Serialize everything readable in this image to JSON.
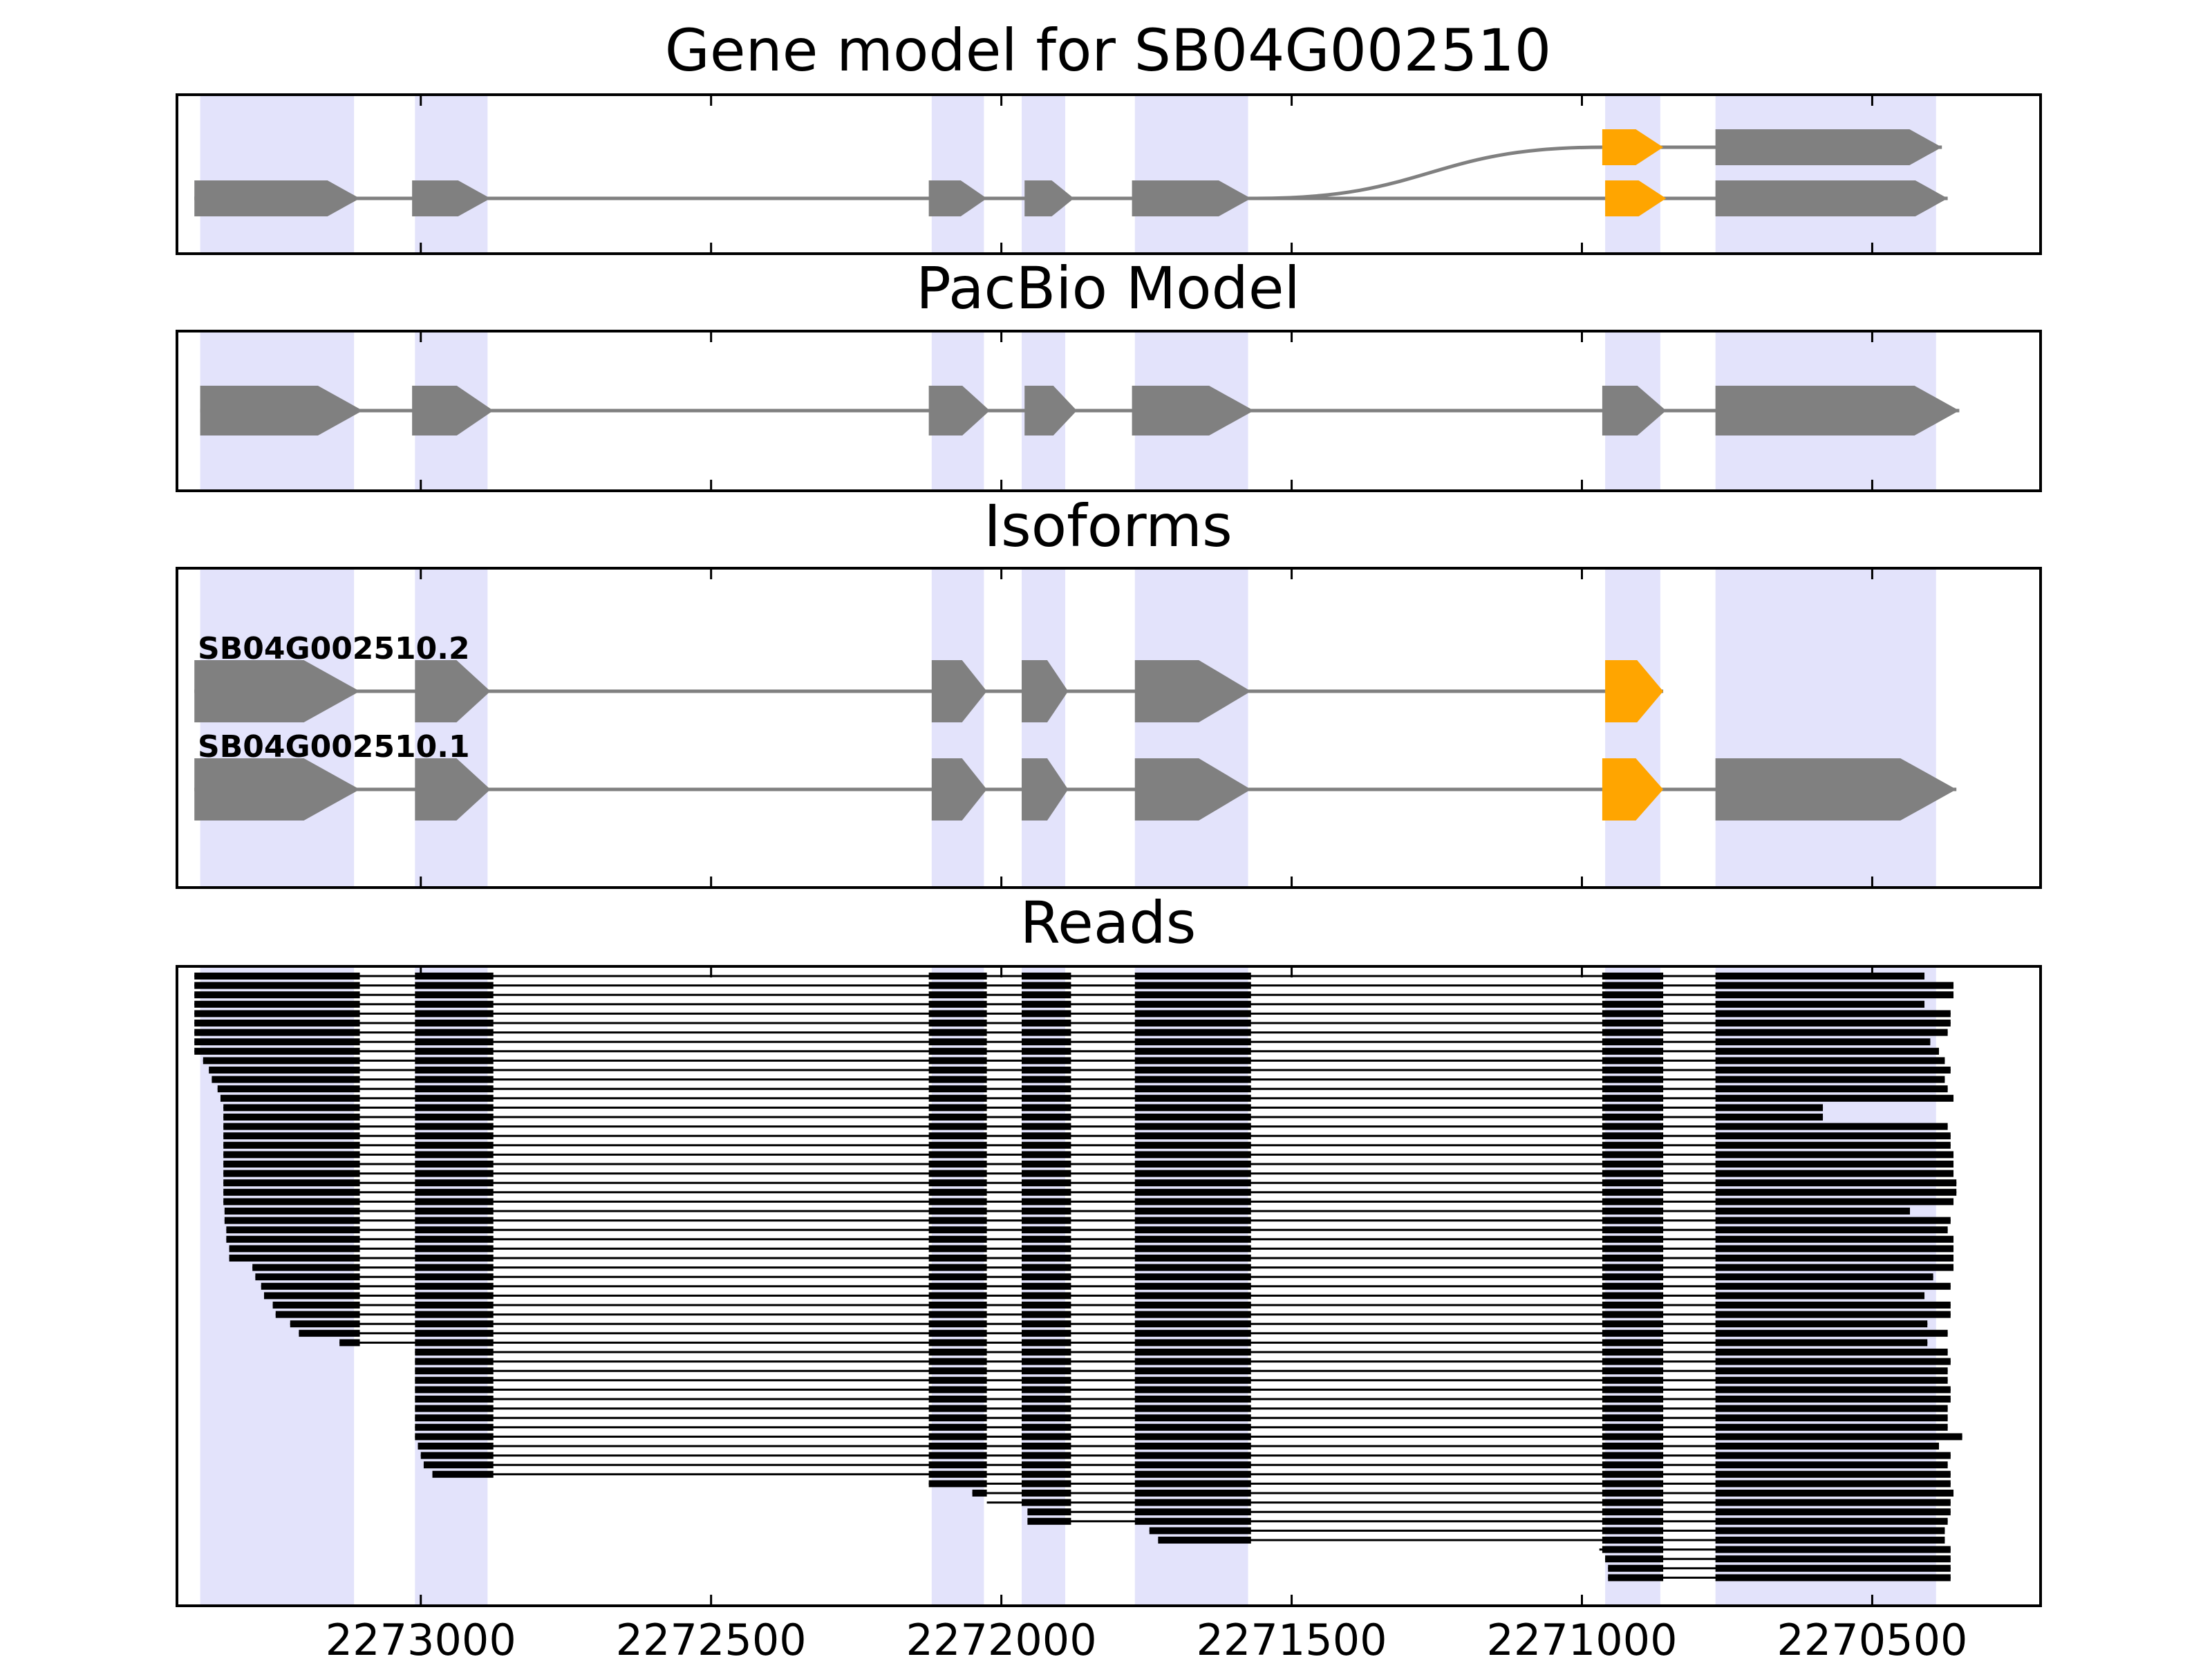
{
  "chart_data": {
    "type": "gene-structure",
    "x_axis": {
      "reversed": true,
      "xlim": [
        2273420,
        2270210
      ],
      "ticks": [
        2273000,
        2272500,
        2272000,
        2271500,
        2271000,
        2270500
      ],
      "tick_labels": [
        "2273000",
        "2272500",
        "2272000",
        "2271500",
        "2271000",
        "2270500"
      ]
    },
    "colors": {
      "exon": "#808080",
      "highlight_exon": "#FFA500",
      "exon_band": "#e3e3fb",
      "intron": "#808080",
      "read": "#000000"
    },
    "exon_bands": [
      [
        2273380,
        2273115
      ],
      [
        2273010,
        2272885
      ],
      [
        2272120,
        2272030
      ],
      [
        2271965,
        2271890
      ],
      [
        2271770,
        2271575
      ],
      [
        2270960,
        2270865
      ],
      [
        2270770,
        2270390
      ]
    ],
    "panels": [
      {
        "title": "Gene model for SB04G002510",
        "transcripts": [
          {
            "exons": [
              [
                2270965,
                2270860
              ],
              [
                2270770,
                2270380
              ]
            ],
            "highlight_exon": 0,
            "y_offset": -0.42,
            "joined_from": [
              2271560,
              0
            ]
          },
          {
            "exons": [
              [
                2273390,
                2273105
              ],
              [
                2273015,
                2272880
              ],
              [
                2272125,
                2272025
              ],
              [
                2271960,
                2271875
              ],
              [
                2271775,
                2271570
              ],
              [
                2270960,
                2270855
              ],
              [
                2270770,
                2270370
              ]
            ],
            "highlight_exon": 5
          }
        ]
      },
      {
        "title": "PacBio Model",
        "transcripts": [
          {
            "exons": [
              [
                2273380,
                2273100
              ],
              [
                2273015,
                2272875
              ],
              [
                2272125,
                2272020
              ],
              [
                2271960,
                2271870
              ],
              [
                2271775,
                2271565
              ],
              [
                2270965,
                2270855
              ],
              [
                2270770,
                2270350
              ]
            ]
          }
        ]
      },
      {
        "title": "Isoforms",
        "transcripts": [
          {
            "name": "SB04G002510.2",
            "exons": [
              [
                2273390,
                2273105
              ],
              [
                2273010,
                2272880
              ],
              [
                2272120,
                2272025
              ],
              [
                2271965,
                2271885
              ],
              [
                2271770,
                2271570
              ],
              [
                2270960,
                2270860
              ]
            ],
            "highlight_exon": 5
          },
          {
            "name": "SB04G002510.1",
            "exons": [
              [
                2273390,
                2273105
              ],
              [
                2273010,
                2272880
              ],
              [
                2272120,
                2272025
              ],
              [
                2271965,
                2271885
              ],
              [
                2271770,
                2271570
              ],
              [
                2270965,
                2270860
              ],
              [
                2270770,
                2270355
              ]
            ],
            "highlight_exon": 5
          }
        ]
      },
      {
        "title": "Reads",
        "read_exon_columns": [
          [
            2273010,
            2272875
          ],
          [
            2272125,
            2272025
          ],
          [
            2271965,
            2271880
          ],
          [
            2271770,
            2271570
          ],
          [
            2270965,
            2270860
          ],
          [
            2270770,
            2270200
          ]
        ],
        "reads": [
          {
            "s": 2273390,
            "e": 2270410
          },
          {
            "s": 2273390,
            "e": 2270360
          },
          {
            "s": 2273390,
            "e": 2270360
          },
          {
            "s": 2273390,
            "e": 2270410
          },
          {
            "s": 2273390,
            "e": 2270365
          },
          {
            "s": 2273390,
            "e": 2270365
          },
          {
            "s": 2273390,
            "e": 2270370
          },
          {
            "s": 2273390,
            "e": 2270400
          },
          {
            "s": 2273390,
            "e": 2270385
          },
          {
            "s": 2273375,
            "e": 2270375
          },
          {
            "s": 2273365,
            "e": 2270365
          },
          {
            "s": 2273360,
            "e": 2270375
          },
          {
            "s": 2273350,
            "e": 2270370
          },
          {
            "s": 2273345,
            "e": 2270360
          },
          {
            "s": 2273340,
            "e": 2270585
          },
          {
            "s": 2273340,
            "e": 2270585
          },
          {
            "s": 2273340,
            "e": 2270370
          },
          {
            "s": 2273340,
            "e": 2270365
          },
          {
            "s": 2273340,
            "e": 2270365
          },
          {
            "s": 2273340,
            "e": 2270360
          },
          {
            "s": 2273340,
            "e": 2270360
          },
          {
            "s": 2273340,
            "e": 2270360
          },
          {
            "s": 2273340,
            "e": 2270355
          },
          {
            "s": 2273340,
            "e": 2270355
          },
          {
            "s": 2273340,
            "e": 2270360
          },
          {
            "s": 2273338,
            "e": 2270435
          },
          {
            "s": 2273338,
            "e": 2270365
          },
          {
            "s": 2273335,
            "e": 2270370
          },
          {
            "s": 2273335,
            "e": 2270360
          },
          {
            "s": 2273330,
            "e": 2270360
          },
          {
            "s": 2273330,
            "e": 2270360
          },
          {
            "s": 2273290,
            "e": 2270360
          },
          {
            "s": 2273285,
            "e": 2270395
          },
          {
            "s": 2273275,
            "e": 2270365
          },
          {
            "s": 2273270,
            "e": 2270410
          },
          {
            "s": 2273255,
            "e": 2270365
          },
          {
            "s": 2273250,
            "e": 2270365
          },
          {
            "s": 2273225,
            "e": 2270405
          },
          {
            "s": 2273210,
            "e": 2270370
          },
          {
            "s": 2273140,
            "e": 2270405
          },
          {
            "s": 2273010,
            "e": 2270370
          },
          {
            "s": 2273010,
            "e": 2270365
          },
          {
            "s": 2273010,
            "e": 2270370
          },
          {
            "s": 2273010,
            "e": 2270370
          },
          {
            "s": 2273010,
            "e": 2270365
          },
          {
            "s": 2273010,
            "e": 2270365
          },
          {
            "s": 2273010,
            "e": 2270370
          },
          {
            "s": 2273010,
            "e": 2270370
          },
          {
            "s": 2273010,
            "e": 2270370
          },
          {
            "s": 2273010,
            "e": 2270345
          },
          {
            "s": 2273005,
            "e": 2270385
          },
          {
            "s": 2273000,
            "e": 2270365
          },
          {
            "s": 2272995,
            "e": 2270370
          },
          {
            "s": 2272980,
            "e": 2270365
          },
          {
            "s": 2272125,
            "e": 2270365
          },
          {
            "s": 2272050,
            "e": 2270360
          },
          {
            "s": 2272025,
            "e": 2270365
          },
          {
            "s": 2271955,
            "e": 2270365
          },
          {
            "s": 2271955,
            "e": 2270370
          },
          {
            "s": 2271745,
            "e": 2270375
          },
          {
            "s": 2271730,
            "e": 2270375
          },
          {
            "s": 2270970,
            "e": 2270365
          },
          {
            "s": 2270960,
            "e": 2270365
          },
          {
            "s": 2270955,
            "e": 2270365
          },
          {
            "s": 2270955,
            "e": 2270365
          }
        ]
      }
    ]
  }
}
